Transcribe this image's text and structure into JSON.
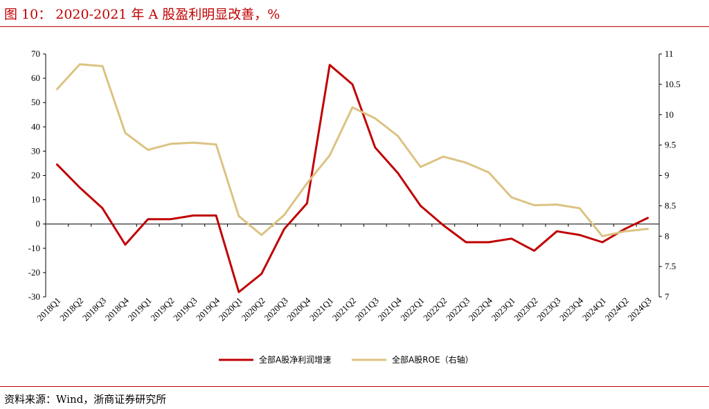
{
  "header": {
    "title": "图 10：  2020-2021 年 A 股盈利明显改善，%"
  },
  "footer": {
    "source": "资料来源：Wind，浙商证券研究所"
  },
  "chart_data": {
    "type": "line",
    "title": "2020-2021 年 A 股盈利明显改善，%",
    "categories": [
      "2018Q1",
      "2018Q2",
      "2018Q3",
      "2018Q4",
      "2019Q1",
      "2019Q2",
      "2019Q3",
      "2019Q4",
      "2020Q1",
      "2020Q2",
      "2020Q3",
      "2020Q4",
      "2021Q1",
      "2021Q2",
      "2021Q3",
      "2021Q4",
      "2022Q1",
      "2022Q2",
      "2022Q3",
      "2022Q4",
      "2023Q1",
      "2023Q2",
      "2023Q3",
      "2023Q4",
      "2024Q1",
      "2024Q2",
      "2024Q3"
    ],
    "left_axis": {
      "ylim": [
        -30,
        70
      ],
      "ticks": [
        -30,
        -20,
        -10,
        0,
        10,
        20,
        30,
        40,
        50,
        60,
        70
      ],
      "tick_labels": [
        "-30",
        "-20",
        "-10",
        "0",
        "10",
        "20",
        "30",
        "40",
        "50",
        "60",
        "70"
      ]
    },
    "right_axis": {
      "ylim": [
        7,
        11
      ],
      "ticks": [
        7,
        7.5,
        8,
        8.5,
        9,
        9.5,
        10,
        10.5,
        11
      ],
      "tick_labels": [
        "7",
        "7.5",
        "8",
        "8.5",
        "9",
        "9.5",
        "10",
        "10.5",
        "11"
      ]
    },
    "series": [
      {
        "name": "全部A股净利润增速",
        "axis": "left",
        "color": "#c00000",
        "values": [
          24.5,
          15,
          6.5,
          -8.5,
          2,
          2,
          3.5,
          3.5,
          -28,
          -20.5,
          -2,
          8.5,
          65.5,
          57.5,
          31.5,
          21,
          7.5,
          -0.5,
          -7.5,
          -7.5,
          -6,
          -11,
          -3,
          -4.5,
          -7.5,
          -2,
          2.5
        ]
      },
      {
        "name": "全部A股ROE（右轴）",
        "axis": "right",
        "color": "#dcc282",
        "values": [
          10.42,
          10.83,
          10.8,
          9.7,
          9.42,
          9.52,
          9.54,
          9.51,
          8.33,
          8.02,
          8.35,
          8.87,
          9.33,
          10.12,
          9.94,
          9.65,
          9.14,
          9.31,
          9.21,
          9.05,
          8.64,
          8.51,
          8.52,
          8.46,
          8.0,
          8.08,
          8.12
        ]
      }
    ],
    "grid": false,
    "legend": "bottom"
  }
}
